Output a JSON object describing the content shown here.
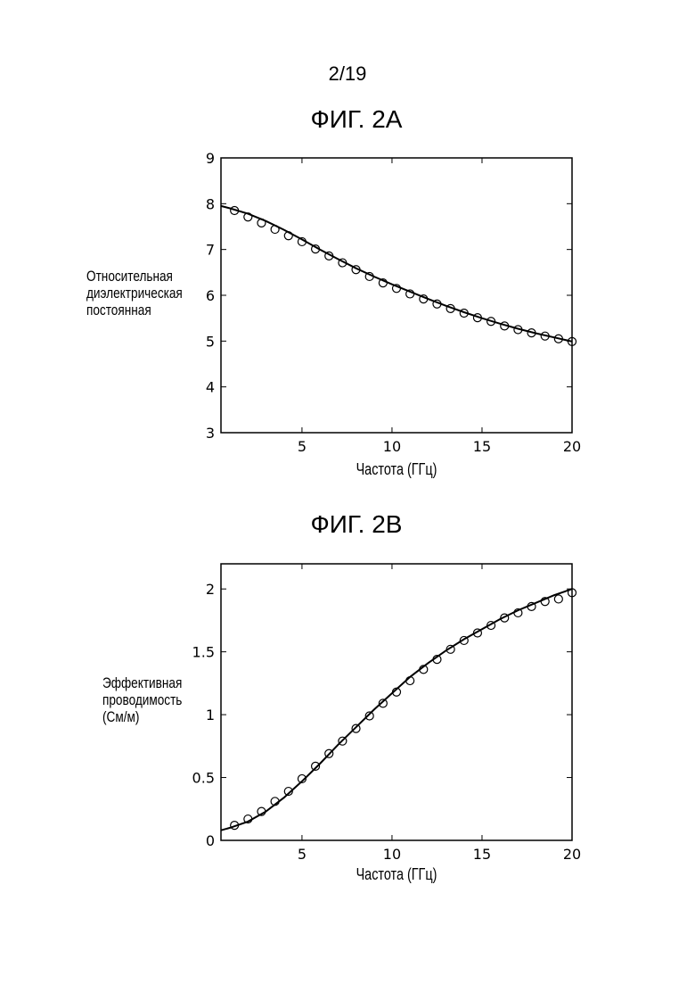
{
  "page": {
    "number": "2/19"
  },
  "chart_data": [
    {
      "type": "line",
      "title": "ФИГ. 2А",
      "xlabel": "Частота (ГГц)",
      "ylabel_lines": [
        "Относительная",
        "диэлектрическая",
        "постоянная"
      ],
      "xlim": [
        0.5,
        20
      ],
      "ylim": [
        3,
        9
      ],
      "xticks": [
        5,
        10,
        15,
        20
      ],
      "yticks": [
        3,
        4,
        5,
        6,
        7,
        8,
        9
      ],
      "grid": false,
      "series": [
        {
          "style": "line",
          "x": [
            0.5,
            1,
            2,
            3,
            4,
            5,
            6,
            7,
            8,
            9,
            10,
            11,
            12,
            13,
            14,
            15,
            16,
            17,
            18,
            19,
            20
          ],
          "y": [
            7.95,
            7.9,
            7.78,
            7.62,
            7.43,
            7.22,
            7.0,
            6.79,
            6.59,
            6.41,
            6.24,
            6.08,
            5.92,
            5.77,
            5.63,
            5.5,
            5.38,
            5.27,
            5.17,
            5.08,
            4.99
          ]
        },
        {
          "style": "markers",
          "x": [
            1.25,
            2.0,
            2.75,
            3.5,
            4.25,
            5.0,
            5.75,
            6.5,
            7.25,
            8.0,
            8.75,
            9.5,
            10.25,
            11.0,
            11.75,
            12.5,
            13.25,
            14.0,
            14.75,
            15.5,
            16.25,
            17.0,
            17.75,
            18.5,
            19.25,
            20.0
          ],
          "y": [
            7.85,
            7.71,
            7.58,
            7.44,
            7.3,
            7.17,
            7.01,
            6.86,
            6.71,
            6.56,
            6.41,
            6.27,
            6.15,
            6.03,
            5.92,
            5.81,
            5.71,
            5.61,
            5.51,
            5.43,
            5.33,
            5.25,
            5.18,
            5.11,
            5.05,
            4.99
          ]
        }
      ]
    },
    {
      "type": "line",
      "title": "ФИГ. 2В",
      "xlabel": "Частота (ГГц)",
      "ylabel_lines": [
        "Эффективная",
        "проводимость",
        "(См/м)"
      ],
      "xlim": [
        0.5,
        20
      ],
      "ylim": [
        0,
        2.2
      ],
      "xticks": [
        5,
        10,
        15,
        20
      ],
      "yticks": [
        0,
        0.5,
        1,
        1.5,
        2
      ],
      "ytick_labels": [
        "0",
        "0.5",
        "1",
        "1.5",
        "2"
      ],
      "grid": false,
      "series": [
        {
          "style": "line",
          "x": [
            0.5,
            1,
            2,
            3,
            4,
            5,
            6,
            7,
            8,
            9,
            10,
            11,
            12,
            13,
            14,
            15,
            16,
            17,
            18,
            19,
            20
          ],
          "y": [
            0.08,
            0.1,
            0.15,
            0.23,
            0.34,
            0.47,
            0.61,
            0.76,
            0.9,
            1.04,
            1.17,
            1.3,
            1.41,
            1.51,
            1.6,
            1.68,
            1.76,
            1.83,
            1.89,
            1.95,
            2.0
          ]
        },
        {
          "style": "markers",
          "x": [
            1.25,
            2.0,
            2.75,
            3.5,
            4.25,
            5.0,
            5.75,
            6.5,
            7.25,
            8.0,
            8.75,
            9.5,
            10.25,
            11.0,
            11.75,
            12.5,
            13.25,
            14.0,
            14.75,
            15.5,
            16.25,
            17.0,
            17.75,
            18.5,
            19.25,
            20.0
          ],
          "y": [
            0.12,
            0.17,
            0.23,
            0.31,
            0.39,
            0.49,
            0.59,
            0.69,
            0.79,
            0.89,
            0.99,
            1.09,
            1.18,
            1.27,
            1.36,
            1.44,
            1.52,
            1.59,
            1.65,
            1.71,
            1.77,
            1.81,
            1.86,
            1.9,
            1.92,
            1.97
          ]
        }
      ]
    }
  ]
}
